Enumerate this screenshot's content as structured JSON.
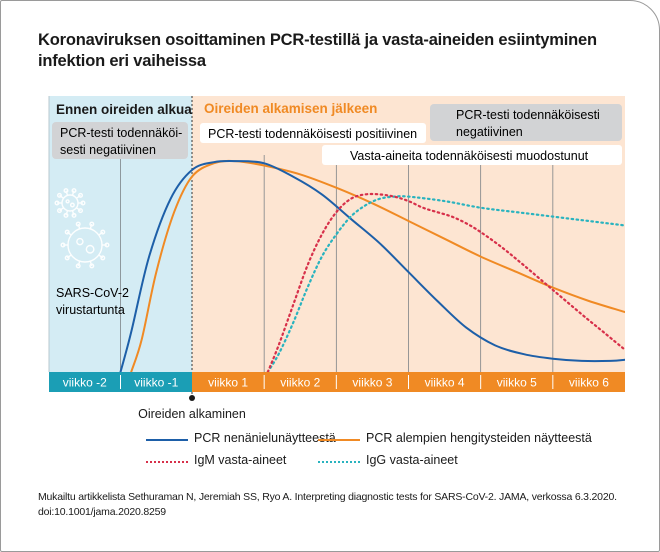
{
  "title_line1": "Koronaviruksen osoittaminen PCR-testillä ja vasta-aineiden esiintyminen",
  "title_line2": "infektion eri vaiheissa",
  "colors": {
    "pre_bg": "#d4ecf4",
    "post_bg": "#fde5d2",
    "axis_pre": "#1b9eb5",
    "axis_post": "#f08a24",
    "pcr_nasal": "#1d5fa8",
    "pcr_lower": "#f08a24",
    "igm": "#d7304a",
    "igg": "#29b3bf",
    "gray_box": "#d2d3d5"
  },
  "chart_data": {
    "type": "line",
    "x_unit": "weeks relative to symptom onset",
    "xlim": [
      -2,
      6
    ],
    "ylim": [
      0,
      1
    ],
    "y_axis_shown": false,
    "grid": "vertical week dividers",
    "x_ticks": [
      "viikko -2",
      "viikko -1",
      "viikko 1",
      "viikko 2",
      "viikko 3",
      "viikko 4",
      "viikko 5",
      "viikko 6"
    ],
    "phases": [
      {
        "label": "Ennen oireiden alkua",
        "x_range": [
          -2,
          0
        ]
      },
      {
        "label": "Oireiden alkamisen jälkeen",
        "x_range": [
          0,
          6
        ]
      }
    ],
    "annotations": [
      "PCR-testi todennäköisesti negatiivinen",
      "PCR-testi todennäköisesti positiivinen",
      "PCR-testi todennäköisesti negatiivinen",
      "Vasta-aineita todennäköisesti muodostunut"
    ],
    "onset_marker": {
      "x": 0,
      "label": "Oireiden alkaminen"
    },
    "infection_label": [
      "SARS-CoV-2",
      "virustartunta"
    ],
    "series": [
      {
        "name": "PCR nenänielunäytteestä",
        "style": "solid",
        "x": [
          -1.0,
          -0.85,
          -0.6,
          -0.3,
          0.0,
          0.3,
          0.6,
          1.0,
          1.4,
          1.8,
          2.2,
          2.6,
          3.0,
          3.4,
          3.8,
          4.2,
          4.6,
          5.0,
          5.4,
          5.8,
          6.0
        ],
        "y": [
          0.0,
          0.18,
          0.52,
          0.78,
          0.91,
          0.945,
          0.95,
          0.94,
          0.88,
          0.8,
          0.69,
          0.58,
          0.45,
          0.32,
          0.2,
          0.12,
          0.08,
          0.06,
          0.05,
          0.05,
          0.055
        ]
      },
      {
        "name": "PCR alempien hengitysteiden näytteestä",
        "style": "solid",
        "x": [
          -0.85,
          -0.7,
          -0.5,
          -0.25,
          0.0,
          0.3,
          0.6,
          1.0,
          1.5,
          2.0,
          2.5,
          3.0,
          3.5,
          4.0,
          4.5,
          5.0,
          5.5,
          6.0
        ],
        "y": [
          0.0,
          0.15,
          0.45,
          0.72,
          0.88,
          0.94,
          0.95,
          0.93,
          0.89,
          0.83,
          0.76,
          0.68,
          0.6,
          0.52,
          0.45,
          0.38,
          0.32,
          0.27
        ]
      },
      {
        "name": "IgM vasta-aineet",
        "style": "dotted",
        "x": [
          1.05,
          1.2,
          1.4,
          1.6,
          1.8,
          2.0,
          2.2,
          2.4,
          2.6,
          2.8,
          3.0,
          3.2,
          3.4,
          3.6,
          3.8,
          4.0,
          4.3,
          4.6,
          5.0,
          5.4,
          5.7,
          6.0
        ],
        "y": [
          0.0,
          0.12,
          0.3,
          0.48,
          0.62,
          0.72,
          0.78,
          0.8,
          0.8,
          0.79,
          0.77,
          0.74,
          0.72,
          0.7,
          0.67,
          0.63,
          0.56,
          0.48,
          0.37,
          0.26,
          0.18,
          0.1
        ]
      },
      {
        "name": "IgG vasta-aineet",
        "style": "dotted",
        "x": [
          1.05,
          1.2,
          1.4,
          1.6,
          1.8,
          2.0,
          2.2,
          2.4,
          2.6,
          2.8,
          3.0,
          3.5,
          4.0,
          4.5,
          5.0,
          5.5,
          6.0
        ],
        "y": [
          0.0,
          0.08,
          0.22,
          0.38,
          0.52,
          0.62,
          0.7,
          0.75,
          0.78,
          0.79,
          0.79,
          0.77,
          0.74,
          0.72,
          0.7,
          0.68,
          0.66
        ]
      }
    ]
  },
  "source_line1": "Mukailtu artikkelista Sethuraman N, Jeremiah SS, Ryo A. Interpreting diagnostic tests for SARS-CoV-2. JAMA, verkossa 6.3.2020.",
  "source_line2": "doi:10.1001/jama.2020.8259"
}
